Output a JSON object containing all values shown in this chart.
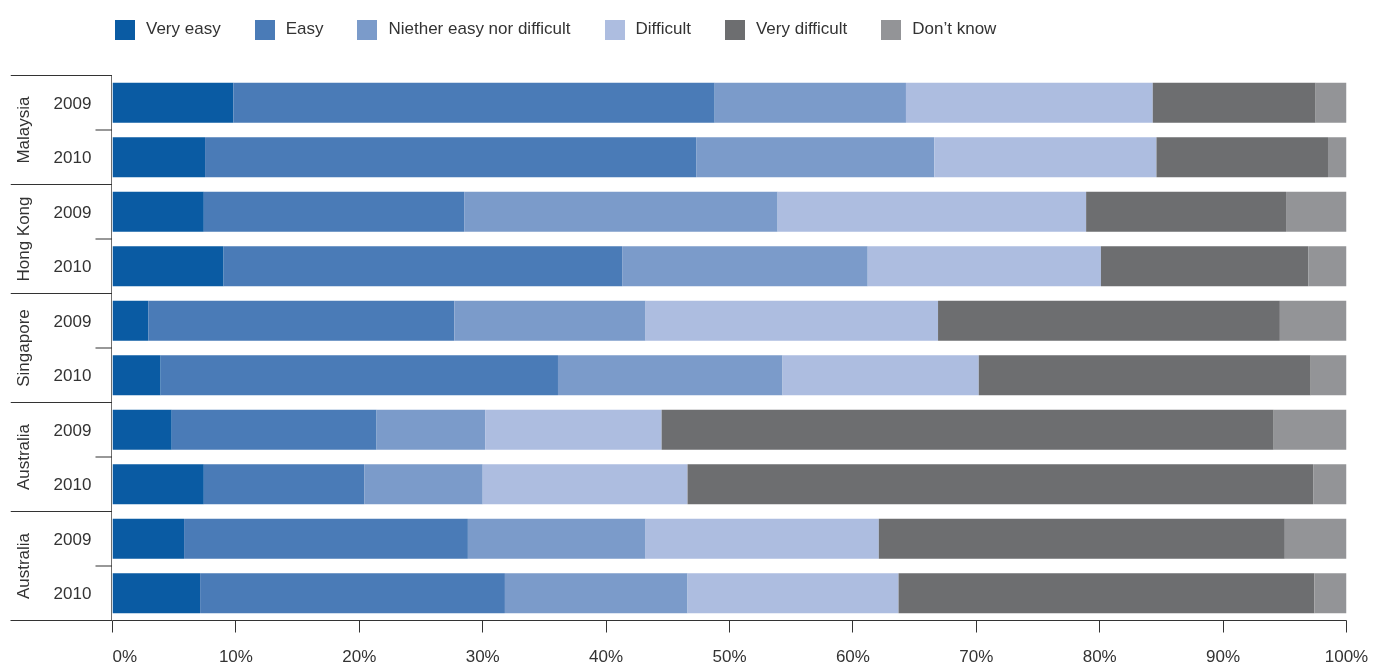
{
  "chart_data": {
    "type": "bar",
    "orientation": "horizontal",
    "stacked": true,
    "categories": [
      "2009",
      "2010",
      "2009",
      "2010",
      "2009",
      "2010",
      "2009",
      "2010",
      "2009",
      "2010"
    ],
    "annotations": [
      "Malaysia",
      "Hong Kong",
      "Singapore",
      "Australia",
      "Australia"
    ],
    "series": [
      {
        "name": "Very easy",
        "color": "#0a5ba3",
        "values": [
          9.8,
          7.5,
          7.4,
          9.0,
          2.9,
          3.9,
          4.8,
          7.4,
          5.8,
          7.1
        ]
      },
      {
        "name": "Easy",
        "color": "#4a7bb7",
        "values": [
          39.0,
          39.8,
          21.1,
          32.3,
          24.8,
          32.2,
          16.6,
          13.0,
          23.0,
          24.7
        ]
      },
      {
        "name": "Niether easy nor difficult",
        "color": "#7b9bca",
        "values": [
          15.5,
          19.3,
          25.4,
          19.9,
          15.5,
          18.2,
          8.8,
          9.6,
          14.4,
          14.8
        ]
      },
      {
        "name": "Difficult",
        "color": "#adbde0",
        "values": [
          20.0,
          18.0,
          25.0,
          18.9,
          23.7,
          15.9,
          14.3,
          16.6,
          18.9,
          17.1
        ]
      },
      {
        "name": "Very difficult",
        "color": "#6d6e70",
        "values": [
          13.2,
          13.9,
          16.2,
          16.8,
          27.7,
          26.9,
          49.6,
          50.7,
          32.9,
          33.7
        ]
      },
      {
        "name": "Don’t know",
        "color": "#939497",
        "values": [
          2.5,
          1.5,
          4.9,
          3.1,
          5.4,
          2.9,
          5.9,
          2.7,
          5.0,
          2.6
        ]
      }
    ],
    "xlim": [
      0,
      100
    ],
    "xticks": [
      {
        "value": 0,
        "label": "0%"
      },
      {
        "value": 10,
        "label": "10%"
      },
      {
        "value": 20,
        "label": "20%"
      },
      {
        "value": 30,
        "label": "30%"
      },
      {
        "value": 40,
        "label": "40%"
      },
      {
        "value": 50,
        "label": "50%"
      },
      {
        "value": 60,
        "label": "60%"
      },
      {
        "value": 70,
        "label": "70%"
      },
      {
        "value": 80,
        "label": "80%"
      },
      {
        "value": 90,
        "label": "90%"
      },
      {
        "value": 100,
        "label": "100%"
      }
    ],
    "grid": false,
    "legend": "top left"
  }
}
